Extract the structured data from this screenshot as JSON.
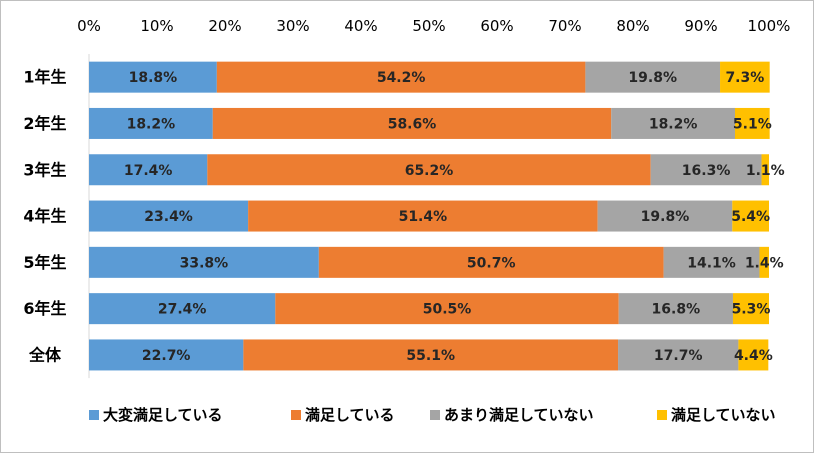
{
  "chart_data": {
    "type": "bar",
    "orientation": "horizontal",
    "stacked": "percent",
    "title": "",
    "xlabel": "",
    "ylabel": "",
    "xlim": [
      0,
      100
    ],
    "x_ticks": [
      "0%",
      "10%",
      "20%",
      "30%",
      "40%",
      "50%",
      "60%",
      "70%",
      "80%",
      "90%",
      "100%"
    ],
    "x_tick_position": "top",
    "grid": false,
    "legend_position": "bottom",
    "categories": [
      "1年生",
      "2年生",
      "3年生",
      "4年生",
      "5年生",
      "6年生",
      "全体"
    ],
    "series": [
      {
        "name": "大変満足している",
        "color": "#5b9bd5",
        "values": [
          18.8,
          18.2,
          17.4,
          23.4,
          33.8,
          27.4,
          22.7
        ],
        "labels": [
          "18.8%",
          "18.2%",
          "17.4%",
          "23.4%",
          "33.8%",
          "27.4%",
          "22.7%"
        ]
      },
      {
        "name": "満足している",
        "color": "#ed7d31",
        "values": [
          54.2,
          58.6,
          65.2,
          51.4,
          50.7,
          50.5,
          55.1
        ],
        "labels": [
          "54.2%",
          "58.6%",
          "65.2%",
          "51.4%",
          "50.7%",
          "50.5%",
          "55.1%"
        ]
      },
      {
        "name": "あまり満足していない",
        "color": "#a5a5a5",
        "values": [
          19.8,
          18.2,
          16.3,
          19.8,
          14.1,
          16.8,
          17.7
        ],
        "labels": [
          "19.8%",
          "18.2%",
          "16.3%",
          "19.8%",
          "14.1%",
          "16.8%",
          "17.7%"
        ]
      },
      {
        "name": "満足していない",
        "color": "#ffc000",
        "values": [
          7.3,
          5.1,
          1.1,
          5.4,
          1.4,
          5.3,
          4.4
        ],
        "labels": [
          "7.3%",
          "5.1%",
          "1.1%",
          "5.4%",
          "1.4%",
          "5.3%",
          "4.4%"
        ]
      }
    ]
  }
}
